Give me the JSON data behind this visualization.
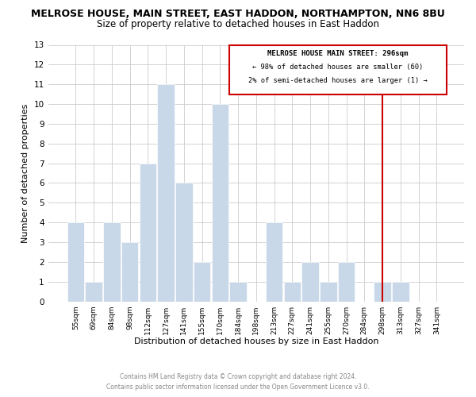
{
  "title": "MELROSE HOUSE, MAIN STREET, EAST HADDON, NORTHAMPTON, NN6 8BU",
  "subtitle": "Size of property relative to detached houses in East Haddon",
  "xlabel": "Distribution of detached houses by size in East Haddon",
  "ylabel": "Number of detached properties",
  "bar_labels": [
    "55sqm",
    "69sqm",
    "84sqm",
    "98sqm",
    "112sqm",
    "127sqm",
    "141sqm",
    "155sqm",
    "170sqm",
    "184sqm",
    "198sqm",
    "213sqm",
    "227sqm",
    "241sqm",
    "255sqm",
    "270sqm",
    "284sqm",
    "298sqm",
    "313sqm",
    "327sqm",
    "341sqm"
  ],
  "bar_heights": [
    4,
    1,
    4,
    3,
    7,
    11,
    6,
    2,
    10,
    1,
    0,
    4,
    1,
    2,
    1,
    2,
    0,
    1,
    1,
    0,
    0
  ],
  "bar_color": "#c8d8e8",
  "bar_edge_color": "#ffffff",
  "ylim": [
    0,
    13
  ],
  "yticks": [
    0,
    1,
    2,
    3,
    4,
    5,
    6,
    7,
    8,
    9,
    10,
    11,
    12,
    13
  ],
  "vline_index": 17,
  "vline_color": "#cc0000",
  "annotation_title": "MELROSE HOUSE MAIN STREET: 296sqm",
  "annotation_line1": "← 98% of detached houses are smaller (60)",
  "annotation_line2": "2% of semi-detached houses are larger (1) →",
  "annotation_box_color": "#cc0000",
  "footer_line1": "Contains HM Land Registry data © Crown copyright and database right 2024.",
  "footer_line2": "Contains public sector information licensed under the Open Government Licence v3.0.",
  "background_color": "#ffffff",
  "grid_color": "#cccccc",
  "title_fontsize": 9,
  "subtitle_fontsize": 8.5,
  "xlabel_fontsize": 8,
  "ylabel_fontsize": 8
}
